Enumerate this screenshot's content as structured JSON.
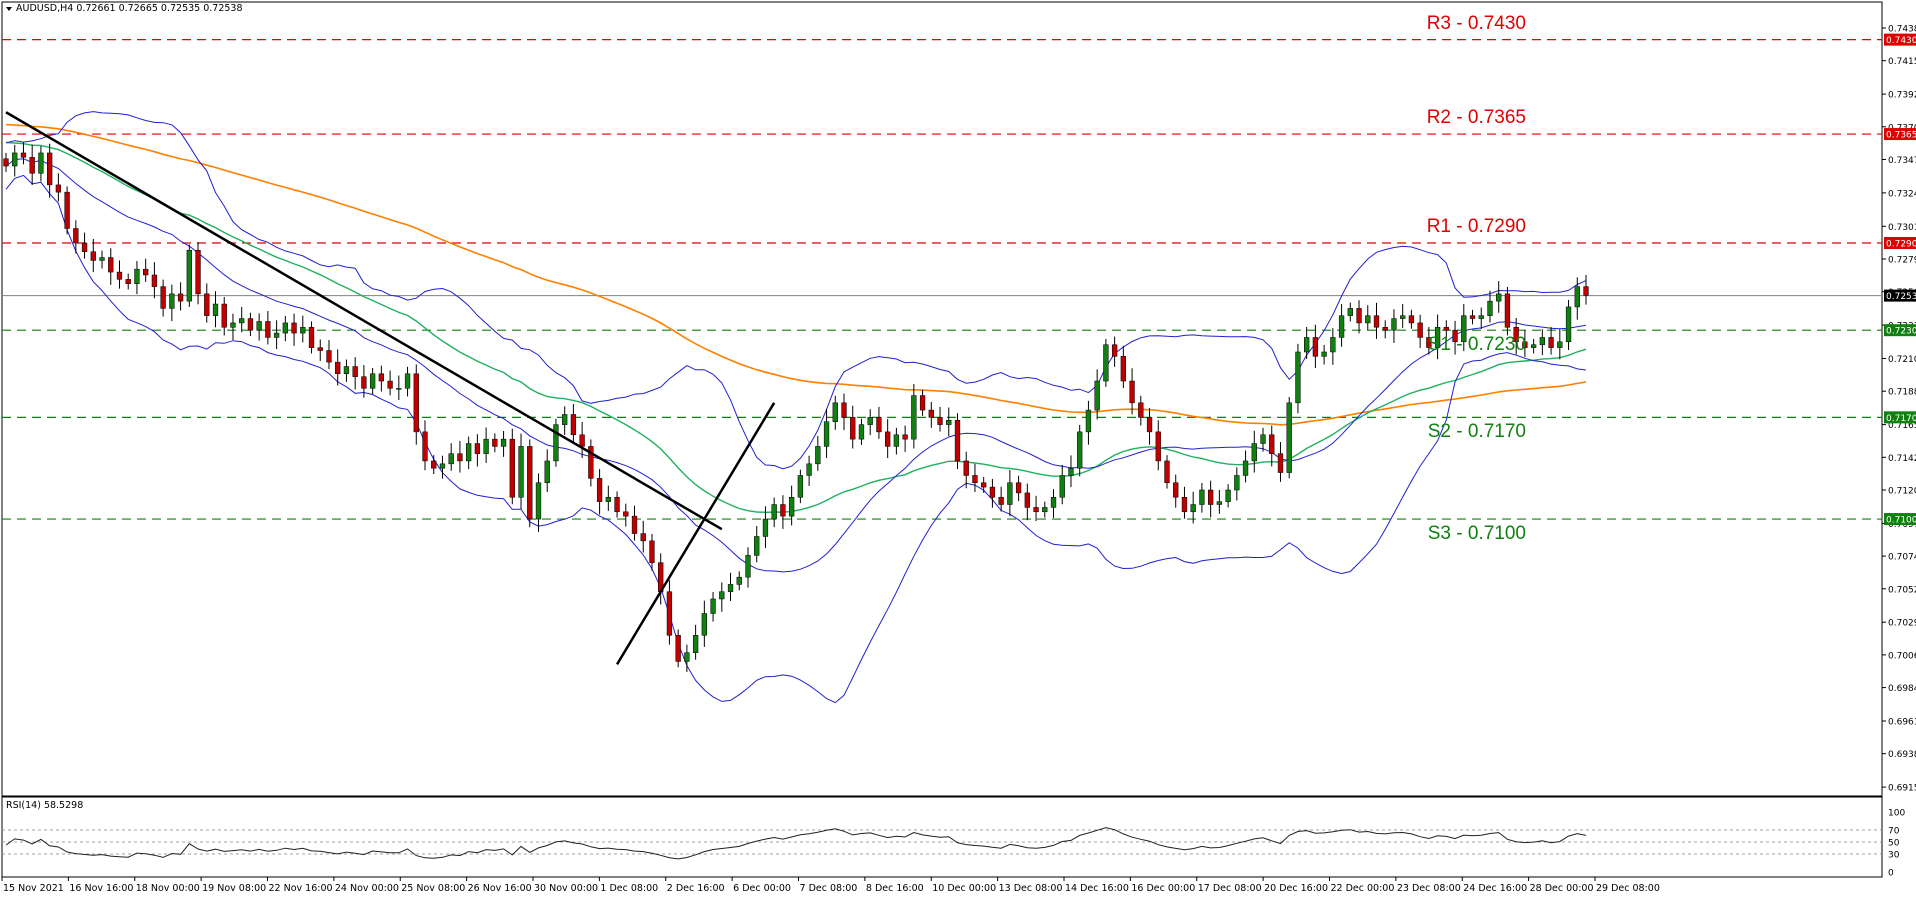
{
  "header": {
    "symbol": "AUDUSD,H4",
    "ohlc": "0.72661 0.72665 0.72535 0.72538"
  },
  "colors": {
    "resistance": "#e00000",
    "support": "#108010",
    "bull": "#108010",
    "bear": "#c00000",
    "ema200": "#ff8000",
    "ema50": "#20b060",
    "bollinger": "#2020d0",
    "trendline": "#000000"
  },
  "levels": [
    {
      "name": "R3",
      "label": "R3 - 0.7430",
      "value": 0.743,
      "tag": "0.74300",
      "kind": "resistance"
    },
    {
      "name": "R2",
      "label": "R2 - 0.7365",
      "value": 0.7365,
      "tag": "0.73650",
      "kind": "resistance"
    },
    {
      "name": "R1",
      "label": "R1 - 0.7290",
      "value": 0.729,
      "tag": "0.72900",
      "kind": "resistance"
    },
    {
      "name": "S1",
      "label": "S1 - 0.7230",
      "value": 0.723,
      "tag": "0.72300",
      "kind": "support"
    },
    {
      "name": "S2",
      "label": "S2 - 0.7170",
      "value": 0.717,
      "tag": "0.71700",
      "kind": "support"
    },
    {
      "name": "S3",
      "label": "S3 - 0.7100",
      "value": 0.71,
      "tag": "0.71000",
      "kind": "support"
    }
  ],
  "current_price": {
    "value": 0.72538,
    "tag": "0.72538"
  },
  "price_axis": {
    "min": 0.69135,
    "max": 0.7438,
    "ticks": [
      "0.74380",
      "0.74155",
      "0.73925",
      "0.73700",
      "0.73475",
      "0.73245",
      "0.73015",
      "0.72790",
      "0.72565",
      "0.72335",
      "0.72105",
      "0.71880",
      "0.71650",
      "0.71425",
      "0.71200",
      "0.70970",
      "0.70745",
      "0.70520",
      "0.70290",
      "0.70065",
      "0.69840",
      "0.69610",
      "0.69385",
      "0.69155"
    ]
  },
  "rsi": {
    "label": "RSI(14) 58.5298",
    "ticks": [
      "100",
      "70",
      "50",
      "30",
      "0"
    ],
    "levels": [
      70,
      50,
      30
    ]
  },
  "time_axis": {
    "labels": [
      "15 Nov 2021",
      "16 Nov 16:00",
      "18 Nov 00:00",
      "19 Nov 08:00",
      "22 Nov 16:00",
      "24 Nov 00:00",
      "25 Nov 08:00",
      "26 Nov 16:00",
      "30 Nov 00:00",
      "1 Dec 08:00",
      "2 Dec 16:00",
      "6 Dec 00:00",
      "7 Dec 08:00",
      "8 Dec 16:00",
      "10 Dec 00:00",
      "13 Dec 08:00",
      "14 Dec 16:00",
      "16 Dec 00:00",
      "17 Dec 08:00",
      "20 Dec 16:00",
      "22 Dec 00:00",
      "23 Dec 08:00",
      "24 Dec 16:00",
      "28 Dec 00:00",
      "29 Dec 08:00"
    ]
  },
  "chart_data": {
    "type": "candlestick",
    "title": "AUDUSD,H4",
    "ylim": [
      0.69135,
      0.7438
    ],
    "closes": [
      0.7343,
      0.7352,
      0.7349,
      0.7338,
      0.7352,
      0.733,
      0.7325,
      0.73,
      0.729,
      0.7284,
      0.7278,
      0.728,
      0.727,
      0.7265,
      0.7262,
      0.7272,
      0.7268,
      0.726,
      0.7245,
      0.7255,
      0.725,
      0.7285,
      0.7255,
      0.724,
      0.7248,
      0.7232,
      0.7235,
      0.7238,
      0.723,
      0.7236,
      0.7225,
      0.7228,
      0.7235,
      0.7228,
      0.7232,
      0.7218,
      0.7216,
      0.7208,
      0.72,
      0.7205,
      0.7198,
      0.719,
      0.72,
      0.7195,
      0.719,
      0.719,
      0.72,
      0.716,
      0.714,
      0.7135,
      0.7138,
      0.7145,
      0.714,
      0.7152,
      0.7145,
      0.7155,
      0.715,
      0.7155,
      0.7115,
      0.715,
      0.71,
      0.7125,
      0.714,
      0.7165,
      0.7172,
      0.7158,
      0.715,
      0.7128,
      0.7112,
      0.7115,
      0.7105,
      0.7102,
      0.709,
      0.7085,
      0.707,
      0.705,
      0.702,
      0.7002,
      0.7008,
      0.702,
      0.7035,
      0.7045,
      0.705,
      0.7055,
      0.706,
      0.7075,
      0.7088,
      0.71,
      0.711,
      0.7102,
      0.7115,
      0.713,
      0.7138,
      0.715,
      0.7167,
      0.718,
      0.717,
      0.7155,
      0.7165,
      0.717,
      0.716,
      0.715,
      0.7158,
      0.7155,
      0.7185,
      0.7175,
      0.717,
      0.7165,
      0.7168,
      0.714,
      0.713,
      0.7125,
      0.7122,
      0.7115,
      0.711,
      0.7125,
      0.7118,
      0.7108,
      0.7105,
      0.7108,
      0.7115,
      0.713,
      0.7135,
      0.716,
      0.7175,
      0.7195,
      0.722,
      0.7212,
      0.7195,
      0.718,
      0.717,
      0.716,
      0.714,
      0.7125,
      0.7115,
      0.7105,
      0.711,
      0.712,
      0.711,
      0.7112,
      0.712,
      0.713,
      0.714,
      0.7152,
      0.7158,
      0.7145,
      0.7132,
      0.718,
      0.7215,
      0.7225,
      0.7212,
      0.7215,
      0.7225,
      0.724,
      0.7245,
      0.7235,
      0.724,
      0.7232,
      0.723,
      0.7238,
      0.724,
      0.7235,
      0.7225,
      0.7218,
      0.7232,
      0.723,
      0.7222,
      0.724,
      0.7238,
      0.724,
      0.725,
      0.7255,
      0.7232,
      0.7222,
      0.7218,
      0.722,
      0.7225,
      0.7218,
      0.7222,
      0.7246,
      0.726,
      0.7254
    ]
  }
}
